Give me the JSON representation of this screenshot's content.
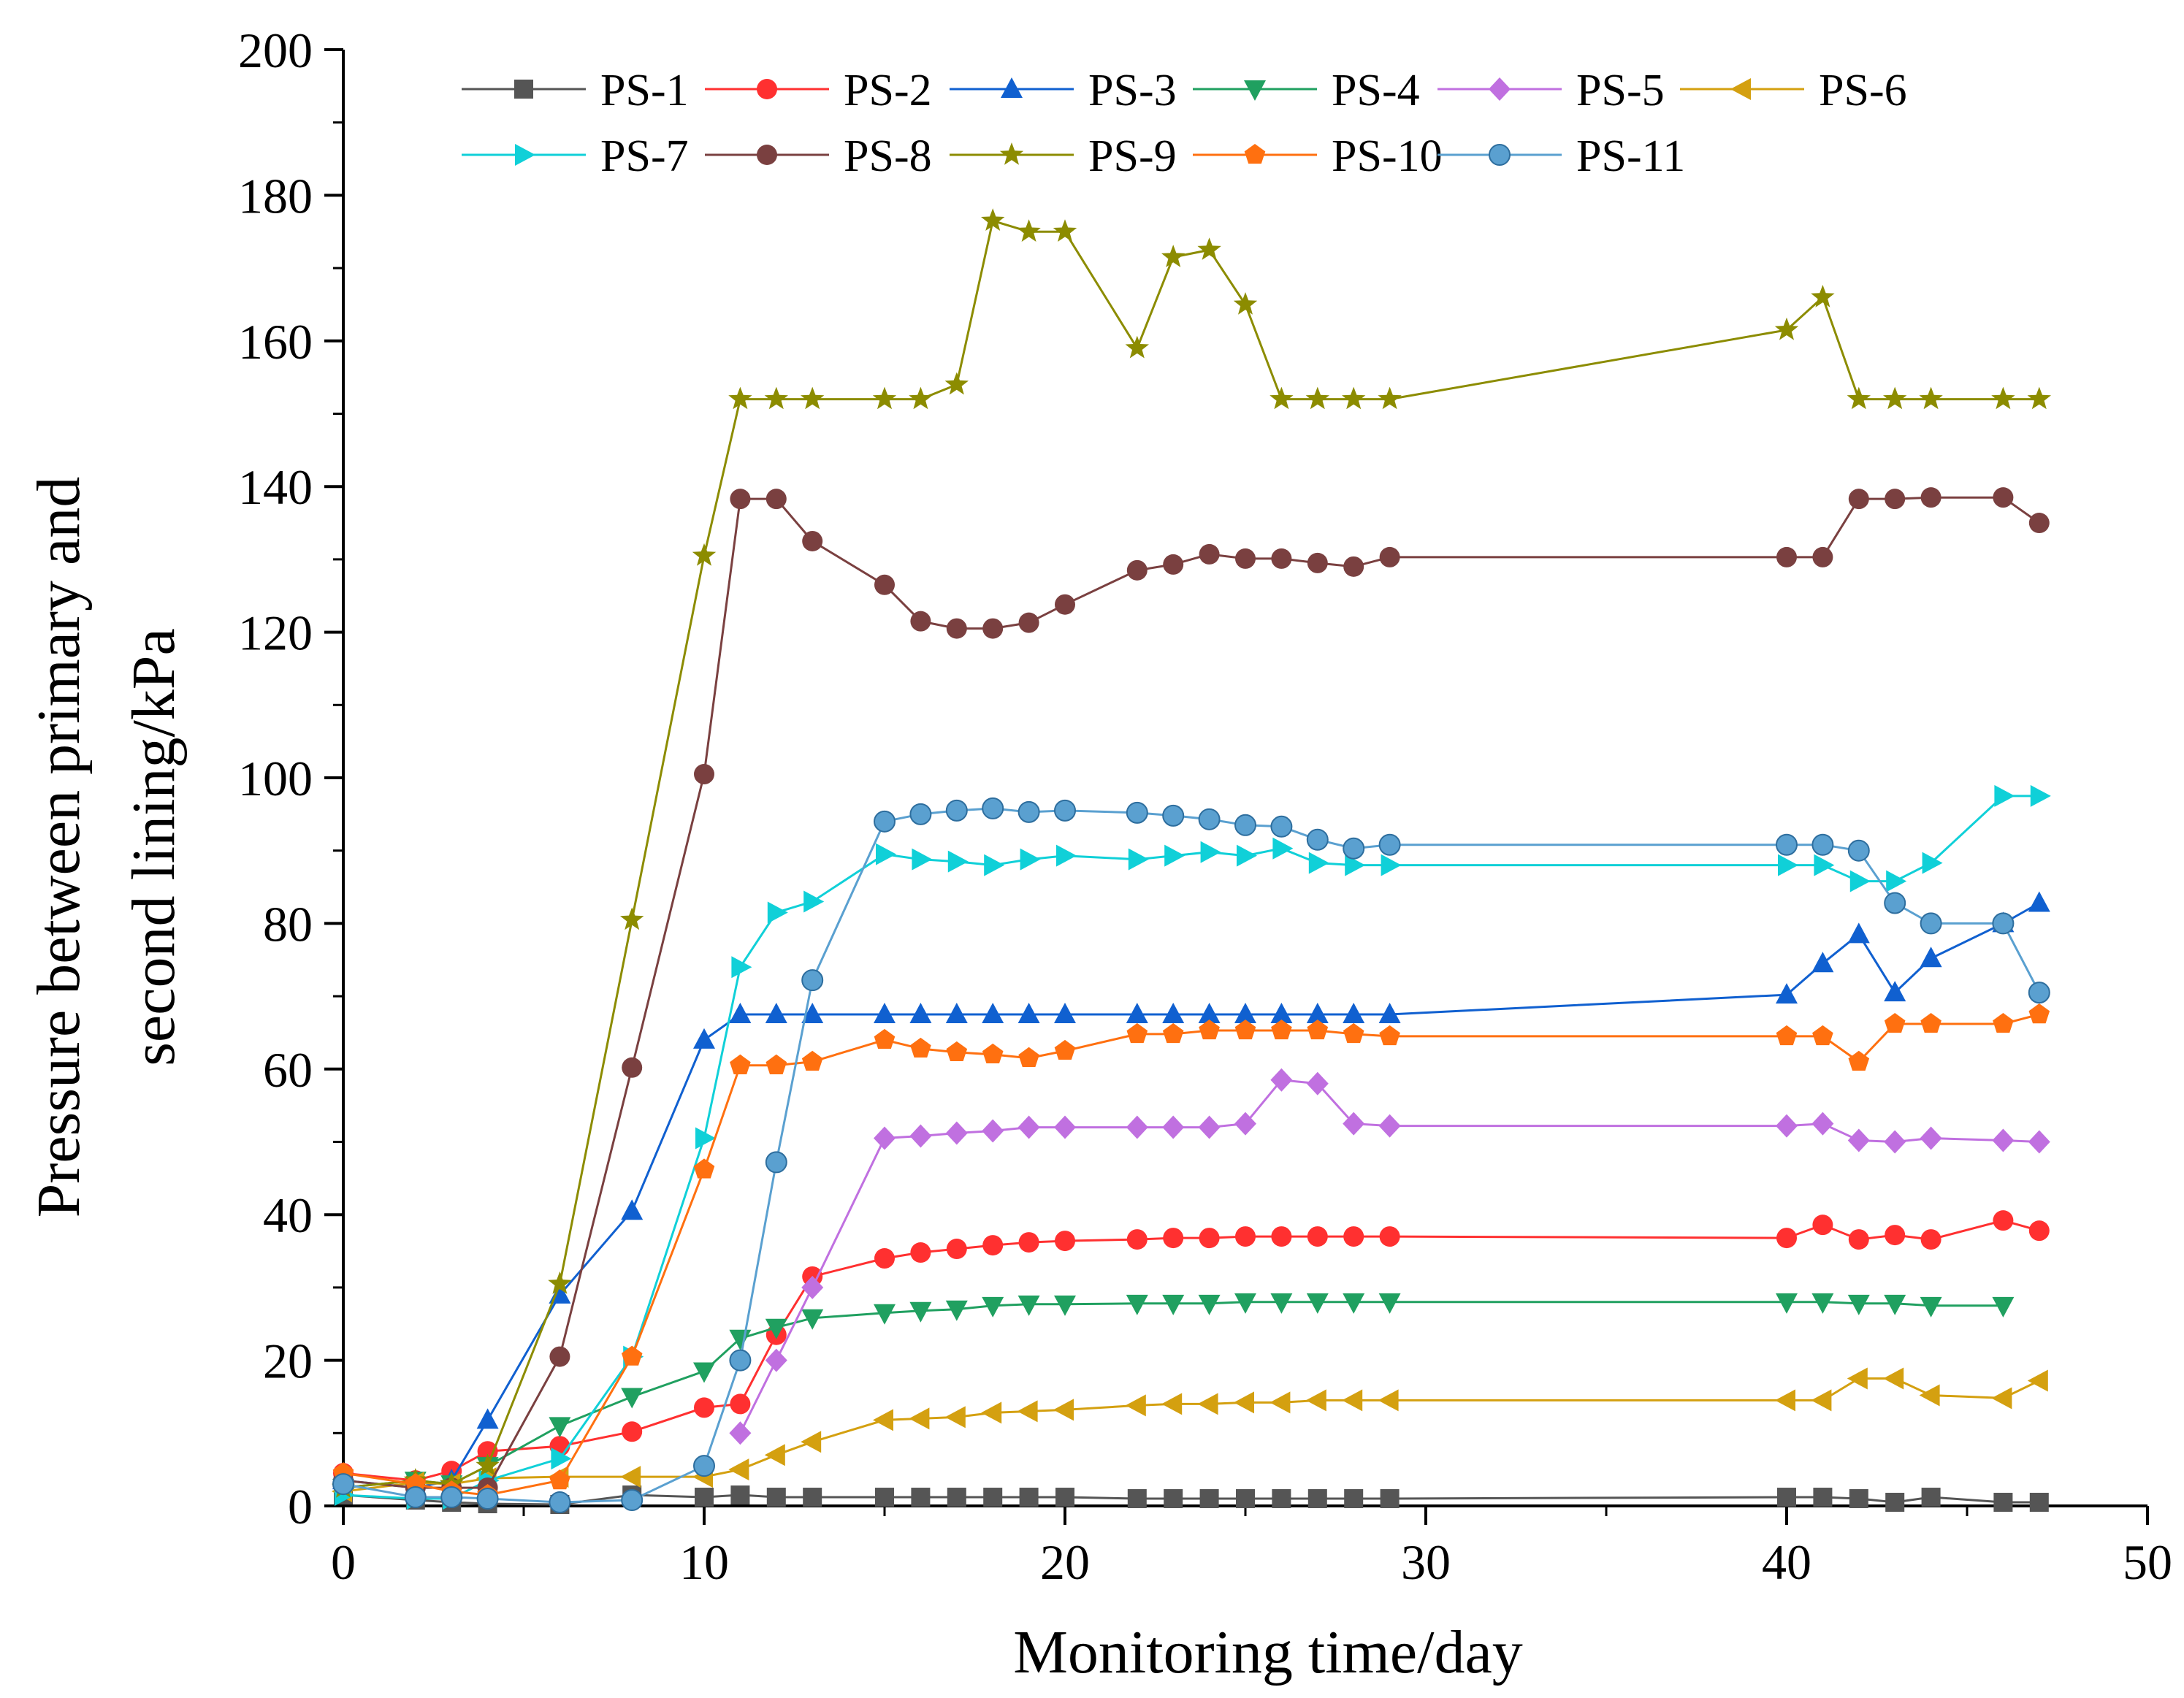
{
  "chart_data": {
    "type": "line",
    "title": "",
    "xlabel": "Monitoring time/day",
    "ylabel_lines": [
      "Pressure between primary and",
      "second lining/kPa"
    ],
    "xlim": [
      0,
      50
    ],
    "ylim": [
      0,
      200
    ],
    "xticks": [
      "0",
      "10",
      "20",
      "30",
      "40",
      "50"
    ],
    "yticks": [
      "0",
      "20",
      "40",
      "60",
      "80",
      "100",
      "120",
      "140",
      "160",
      "180",
      "200"
    ],
    "grid": false,
    "legend_position": "top",
    "series": [
      {
        "name": "PS-1",
        "color": "#555555",
        "marker": "square",
        "x": [
          0,
          2,
          3,
          4,
          6,
          8,
          10,
          11,
          12,
          13,
          15,
          16,
          17,
          18,
          19,
          20,
          22,
          23,
          24,
          25,
          26,
          27,
          28,
          29,
          40,
          41,
          42,
          43,
          44,
          46,
          47
        ],
        "y": [
          1.5,
          0.8,
          0.5,
          0.3,
          0.2,
          1.5,
          1.2,
          1.5,
          1.2,
          1.2,
          1.2,
          1.2,
          1.2,
          1.2,
          1.2,
          1.2,
          1.0,
          1.0,
          1.0,
          1.0,
          1.0,
          1.0,
          1.0,
          1.0,
          1.2,
          1.2,
          1.0,
          0.5,
          1.2,
          0.5,
          0.5
        ]
      },
      {
        "name": "PS-2",
        "color": "#ff3030",
        "marker": "circle",
        "x": [
          0,
          2,
          3,
          4,
          6,
          8,
          10,
          11,
          12,
          13,
          15,
          16,
          17,
          18,
          19,
          20,
          22,
          23,
          24,
          25,
          26,
          27,
          28,
          29,
          40,
          41,
          42,
          43,
          44,
          46,
          47
        ],
        "y": [
          4.5,
          3.5,
          4.8,
          7.5,
          8.2,
          10.2,
          13.5,
          14,
          23.5,
          31.5,
          34,
          34.8,
          35.3,
          35.8,
          36.2,
          36.4,
          36.6,
          36.8,
          36.8,
          37,
          37,
          37,
          37,
          37,
          36.8,
          38.6,
          36.6,
          37.2,
          36.6,
          39.2,
          37.8
        ]
      },
      {
        "name": "PS-3",
        "color": "#1060d0",
        "marker": "triangle-up",
        "x": [
          0,
          2,
          3,
          4,
          6,
          8,
          10,
          11,
          12,
          13,
          15,
          16,
          17,
          18,
          19,
          20,
          22,
          23,
          24,
          25,
          26,
          27,
          28,
          29,
          40,
          41,
          42,
          43,
          44,
          46,
          47
        ],
        "y": [
          3.5,
          2.5,
          3.5,
          11.8,
          29,
          40.5,
          64,
          67.5,
          67.5,
          67.5,
          67.5,
          67.5,
          67.5,
          67.5,
          67.5,
          67.5,
          67.5,
          67.5,
          67.5,
          67.5,
          67.5,
          67.5,
          67.5,
          67.5,
          70.2,
          74.5,
          78.5,
          70.5,
          75.2,
          80,
          82.8
        ]
      },
      {
        "name": "PS-4",
        "color": "#20a060",
        "marker": "triangle-down",
        "x": [
          0,
          2,
          3,
          4,
          6,
          8,
          10,
          11,
          12,
          13,
          15,
          16,
          17,
          18,
          19,
          20,
          22,
          23,
          24,
          25,
          26,
          27,
          28,
          29,
          40,
          41,
          42,
          43,
          44,
          46
        ],
        "y": [
          2.5,
          3.5,
          3.0,
          5.5,
          11,
          15,
          18.5,
          23,
          24.5,
          25.8,
          26.5,
          26.8,
          27,
          27.5,
          27.7,
          27.7,
          27.8,
          27.8,
          27.8,
          28,
          28,
          28,
          28,
          28,
          28,
          28,
          27.8,
          27.8,
          27.5,
          27.5
        ]
      },
      {
        "name": "PS-5",
        "color": "#c070e0",
        "marker": "diamond",
        "x": [
          11,
          12,
          13,
          15,
          16,
          17,
          18,
          19,
          20,
          22,
          23,
          24,
          25,
          26,
          27,
          28,
          29,
          40,
          41,
          42,
          43,
          44,
          46,
          47
        ],
        "y": [
          10,
          20,
          30,
          50.5,
          50.8,
          51.2,
          51.5,
          52,
          52,
          52,
          52,
          52,
          52.5,
          58.5,
          58,
          52.5,
          52.2,
          52.2,
          52.5,
          50.2,
          50,
          50.5,
          50.2,
          50
        ]
      },
      {
        "name": "PS-6",
        "color": "#d4a010",
        "marker": "triangle-left",
        "x": [
          0,
          2,
          3,
          4,
          6,
          8,
          10,
          11,
          12,
          13,
          15,
          16,
          17,
          18,
          19,
          20,
          22,
          23,
          24,
          25,
          26,
          27,
          28,
          29,
          40,
          41,
          42,
          43,
          44,
          46,
          47
        ],
        "y": [
          2.0,
          3.2,
          3.0,
          3.8,
          4,
          4,
          4,
          5,
          7,
          8.8,
          11.8,
          12,
          12.2,
          12.8,
          13,
          13.2,
          13.8,
          14,
          14,
          14.2,
          14.2,
          14.5,
          14.5,
          14.5,
          14.5,
          14.5,
          17.5,
          17.5,
          15.2,
          14.8,
          17.2
        ]
      },
      {
        "name": "PS-7",
        "color": "#10d0d8",
        "marker": "triangle-right",
        "x": [
          0,
          2,
          3,
          4,
          6,
          8,
          10,
          11,
          12,
          13,
          15,
          16,
          17,
          18,
          19,
          20,
          22,
          23,
          24,
          25,
          26,
          27,
          28,
          29,
          40,
          41,
          42,
          43,
          44,
          46,
          47
        ],
        "y": [
          1.5,
          1.0,
          1.0,
          3.5,
          6.5,
          20.5,
          50.5,
          74,
          81.5,
          83,
          89.5,
          88.8,
          88.5,
          88,
          88.8,
          89.3,
          88.8,
          89.3,
          89.8,
          89.3,
          90.3,
          88.3,
          88,
          88,
          88,
          88,
          85.8,
          85.8,
          88.3,
          97.5,
          97.5
        ]
      },
      {
        "name": "PS-8",
        "color": "#7a4040",
        "marker": "circle",
        "x": [
          0,
          2,
          3,
          4,
          6,
          8,
          10,
          11,
          12,
          13,
          15,
          16,
          17,
          18,
          19,
          20,
          22,
          23,
          24,
          25,
          26,
          27,
          28,
          29,
          40,
          41,
          42,
          43,
          44,
          46,
          47
        ],
        "y": [
          3.5,
          2.5,
          2.5,
          2.5,
          20.5,
          60.2,
          100.5,
          138.3,
          138.3,
          132.5,
          126.5,
          121.5,
          120.5,
          120.5,
          121.3,
          123.8,
          128.5,
          129.3,
          130.7,
          130.1,
          130.1,
          129.5,
          129,
          130.3,
          130.3,
          130.3,
          138.3,
          138.3,
          138.5,
          138.5,
          135
        ]
      },
      {
        "name": "PS-9",
        "color": "#8c8c00",
        "marker": "star",
        "x": [
          0,
          2,
          3,
          4,
          6,
          8,
          10,
          11,
          12,
          13,
          15,
          16,
          17,
          18,
          19,
          20,
          22,
          23,
          24,
          25,
          26,
          27,
          28,
          29,
          40,
          41,
          42,
          43,
          44,
          46,
          47
        ],
        "y": [
          2.5,
          3.5,
          3.0,
          5.5,
          30.5,
          80.5,
          130.5,
          152,
          152,
          152,
          152,
          152,
          154,
          176.5,
          175,
          175,
          159,
          171.5,
          172.5,
          165,
          152,
          152,
          152,
          152,
          161.5,
          166,
          152,
          152,
          152,
          152,
          152
        ]
      },
      {
        "name": "PS-10",
        "color": "#ff7010",
        "marker": "pentagon",
        "x": [
          0,
          2,
          3,
          4,
          6,
          8,
          10,
          11,
          12,
          13,
          15,
          16,
          17,
          18,
          19,
          20,
          22,
          23,
          24,
          25,
          26,
          27,
          28,
          29,
          40,
          41,
          42,
          43,
          44,
          46,
          47
        ],
        "y": [
          4.5,
          3.0,
          2.0,
          1.5,
          3.5,
          20.5,
          46.2,
          60.5,
          60.5,
          61,
          64,
          62.8,
          62.3,
          62,
          61.5,
          62.5,
          64.8,
          64.8,
          65.3,
          65.3,
          65.3,
          65.3,
          64.8,
          64.5,
          64.5,
          64.5,
          61,
          66.2,
          66.2,
          66.2,
          67.5
        ]
      },
      {
        "name": "PS-11",
        "color": "#5aa0d0",
        "marker": "ball",
        "x": [
          0,
          2,
          3,
          4,
          6,
          8,
          10,
          11,
          12,
          13,
          15,
          16,
          17,
          18,
          19,
          20,
          22,
          23,
          24,
          25,
          26,
          27,
          28,
          29,
          40,
          41,
          42,
          43,
          44,
          46,
          47
        ],
        "y": [
          3.0,
          1.2,
          1.2,
          1.0,
          0.5,
          0.8,
          5.5,
          20,
          47.2,
          72.2,
          94,
          95,
          95.5,
          95.8,
          95.3,
          95.5,
          95.2,
          94.8,
          94.3,
          93.5,
          93.3,
          91.5,
          90.3,
          90.8,
          90.8,
          90.8,
          90,
          82.8,
          80,
          80,
          70.5
        ]
      }
    ]
  }
}
